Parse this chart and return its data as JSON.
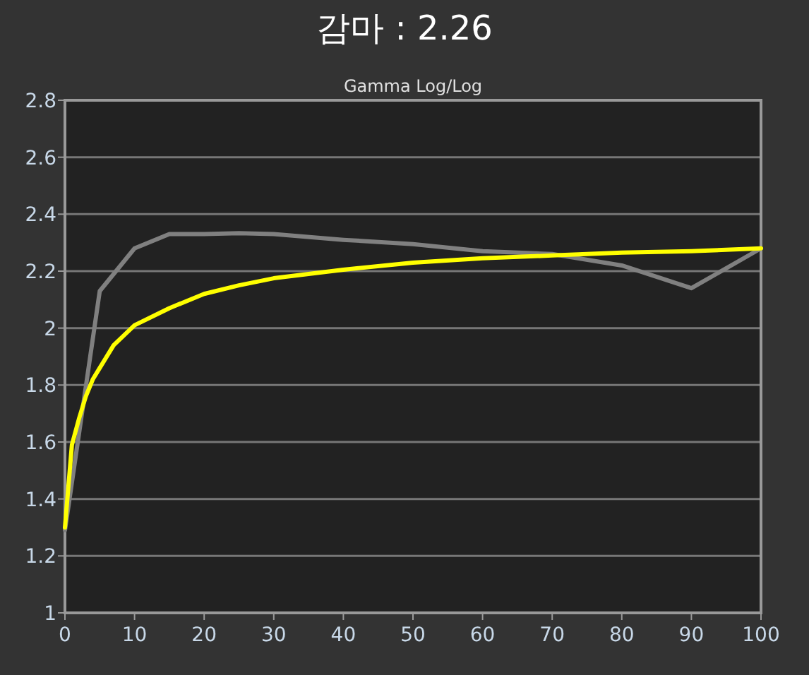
{
  "chart_data": {
    "type": "line",
    "title": "감마 : 2.26",
    "subtitle": "Gamma Log/Log",
    "xlim": [
      0,
      100
    ],
    "xticks": [
      0,
      10,
      20,
      30,
      40,
      50,
      60,
      70,
      80,
      90,
      100
    ],
    "ylim": [
      1,
      2.8
    ],
    "yticks": [
      1,
      1.2,
      1.4,
      1.6,
      1.8,
      2,
      2.2,
      2.4,
      2.6,
      2.8
    ],
    "grid": "y",
    "marker": "none",
    "line_style": "solid",
    "series": [
      {
        "color": "#808080",
        "x": [
          0,
          5,
          10,
          15,
          20,
          25,
          30,
          40,
          50,
          60,
          70,
          80,
          90,
          100
        ],
        "values": [
          1.29,
          2.13,
          2.28,
          2.33,
          2.33,
          2.333,
          2.33,
          2.31,
          2.295,
          2.27,
          2.26,
          2.22,
          2.14,
          2.28
        ]
      },
      {
        "color": "#ffff00",
        "x": [
          0,
          1,
          2,
          3,
          4,
          5,
          7,
          10,
          15,
          20,
          25,
          30,
          40,
          50,
          60,
          70,
          80,
          90,
          100
        ],
        "values": [
          1.3,
          1.59,
          1.68,
          1.76,
          1.82,
          1.86,
          1.94,
          2.01,
          2.07,
          2.12,
          2.15,
          2.175,
          2.205,
          2.23,
          2.245,
          2.255,
          2.265,
          2.27,
          2.28
        ]
      }
    ]
  }
}
